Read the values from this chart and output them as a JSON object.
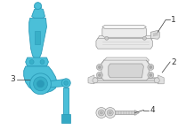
{
  "bg_color": "#ffffff",
  "blue": "#4bbfd8",
  "blue_dark": "#2a9ab8",
  "blue_mid": "#38afc8",
  "gray": "#999999",
  "gray_light": "#cccccc",
  "gray_dark": "#666666",
  "label_color": "#333333",
  "label_fs": 6.5,
  "figsize": [
    2.0,
    1.47
  ],
  "dpi": 100
}
